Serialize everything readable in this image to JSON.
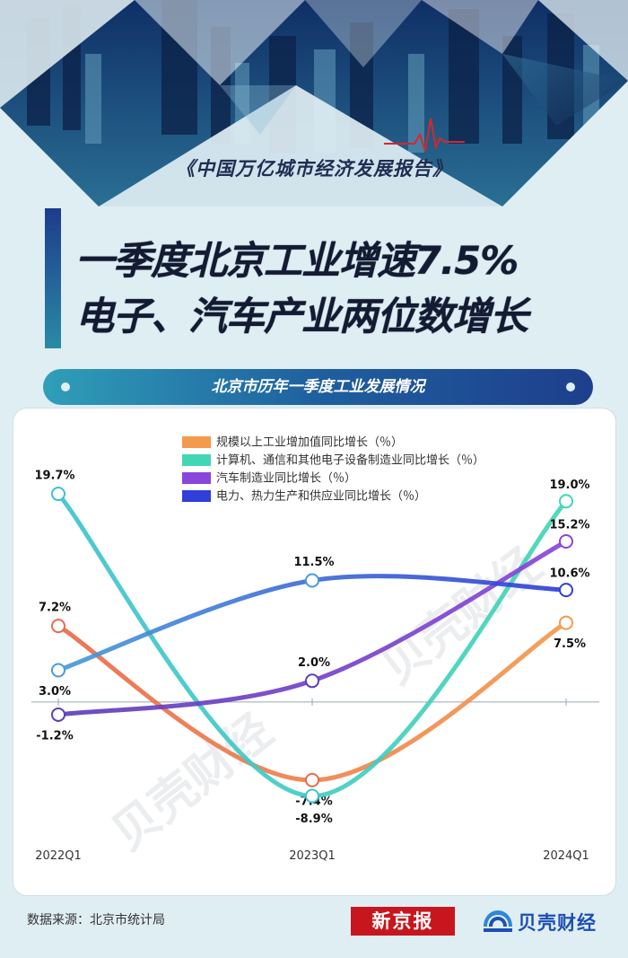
{
  "hero": {
    "report_name": "《中国万亿城市经济发展报告》"
  },
  "headline": {
    "line1": "一季度北京工业增速7.5%",
    "line2": "电子、汽车产业两位数增长"
  },
  "section": {
    "title": "北京市历年一季度工业发展情况"
  },
  "watermark": "贝壳财经",
  "chart_data": {
    "type": "line",
    "categories": [
      "2022Q1",
      "2023Q1",
      "2024Q1"
    ],
    "ylim": [
      -12,
      22
    ],
    "series": [
      {
        "name": "规模以上工业增加值同比增长（％）",
        "values": [
          7.2,
          -7.4,
          7.5
        ],
        "labels": [
          "7.2%",
          "-7.4%",
          "7.5%"
        ],
        "color": "#e96a4a",
        "color_end": "#f39a4d"
      },
      {
        "name": "计算机、通信和其他电子设备制造业同比增长（％）",
        "values": [
          19.7,
          -8.9,
          19.0
        ],
        "labels": [
          "19.7%",
          "-8.9%",
          "19.0%"
        ],
        "color": "#3fc3cf",
        "color_end": "#43d6b5"
      },
      {
        "name": "汽车制造业同比增长（％）",
        "values": [
          -1.2,
          2.0,
          15.2
        ],
        "labels": [
          "-1.2%",
          "2.0%",
          "15.2%"
        ],
        "color": "#5d3fb8",
        "color_end": "#8a45dc"
      },
      {
        "name": "电力、热力生产和供应业同比增长（％）",
        "values": [
          3.0,
          11.5,
          10.6
        ],
        "labels": [
          "3.0%",
          "11.5%",
          "10.6%"
        ],
        "color": "#4b9ad8",
        "color_end": "#2f3fd8"
      }
    ],
    "legend_position": "top-center",
    "grid": false
  },
  "footer": {
    "source": "数据来源：北京市统计局",
    "logo_xjb": "新京报",
    "logo_bk": "贝壳财经"
  }
}
